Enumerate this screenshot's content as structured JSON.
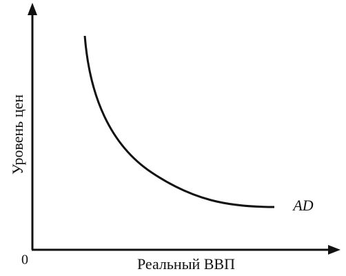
{
  "diagram": {
    "y_axis_label": "Уровень цен",
    "x_axis_label": "Реальный ВВП",
    "origin_label": "0",
    "curve_label": "AD"
  }
}
